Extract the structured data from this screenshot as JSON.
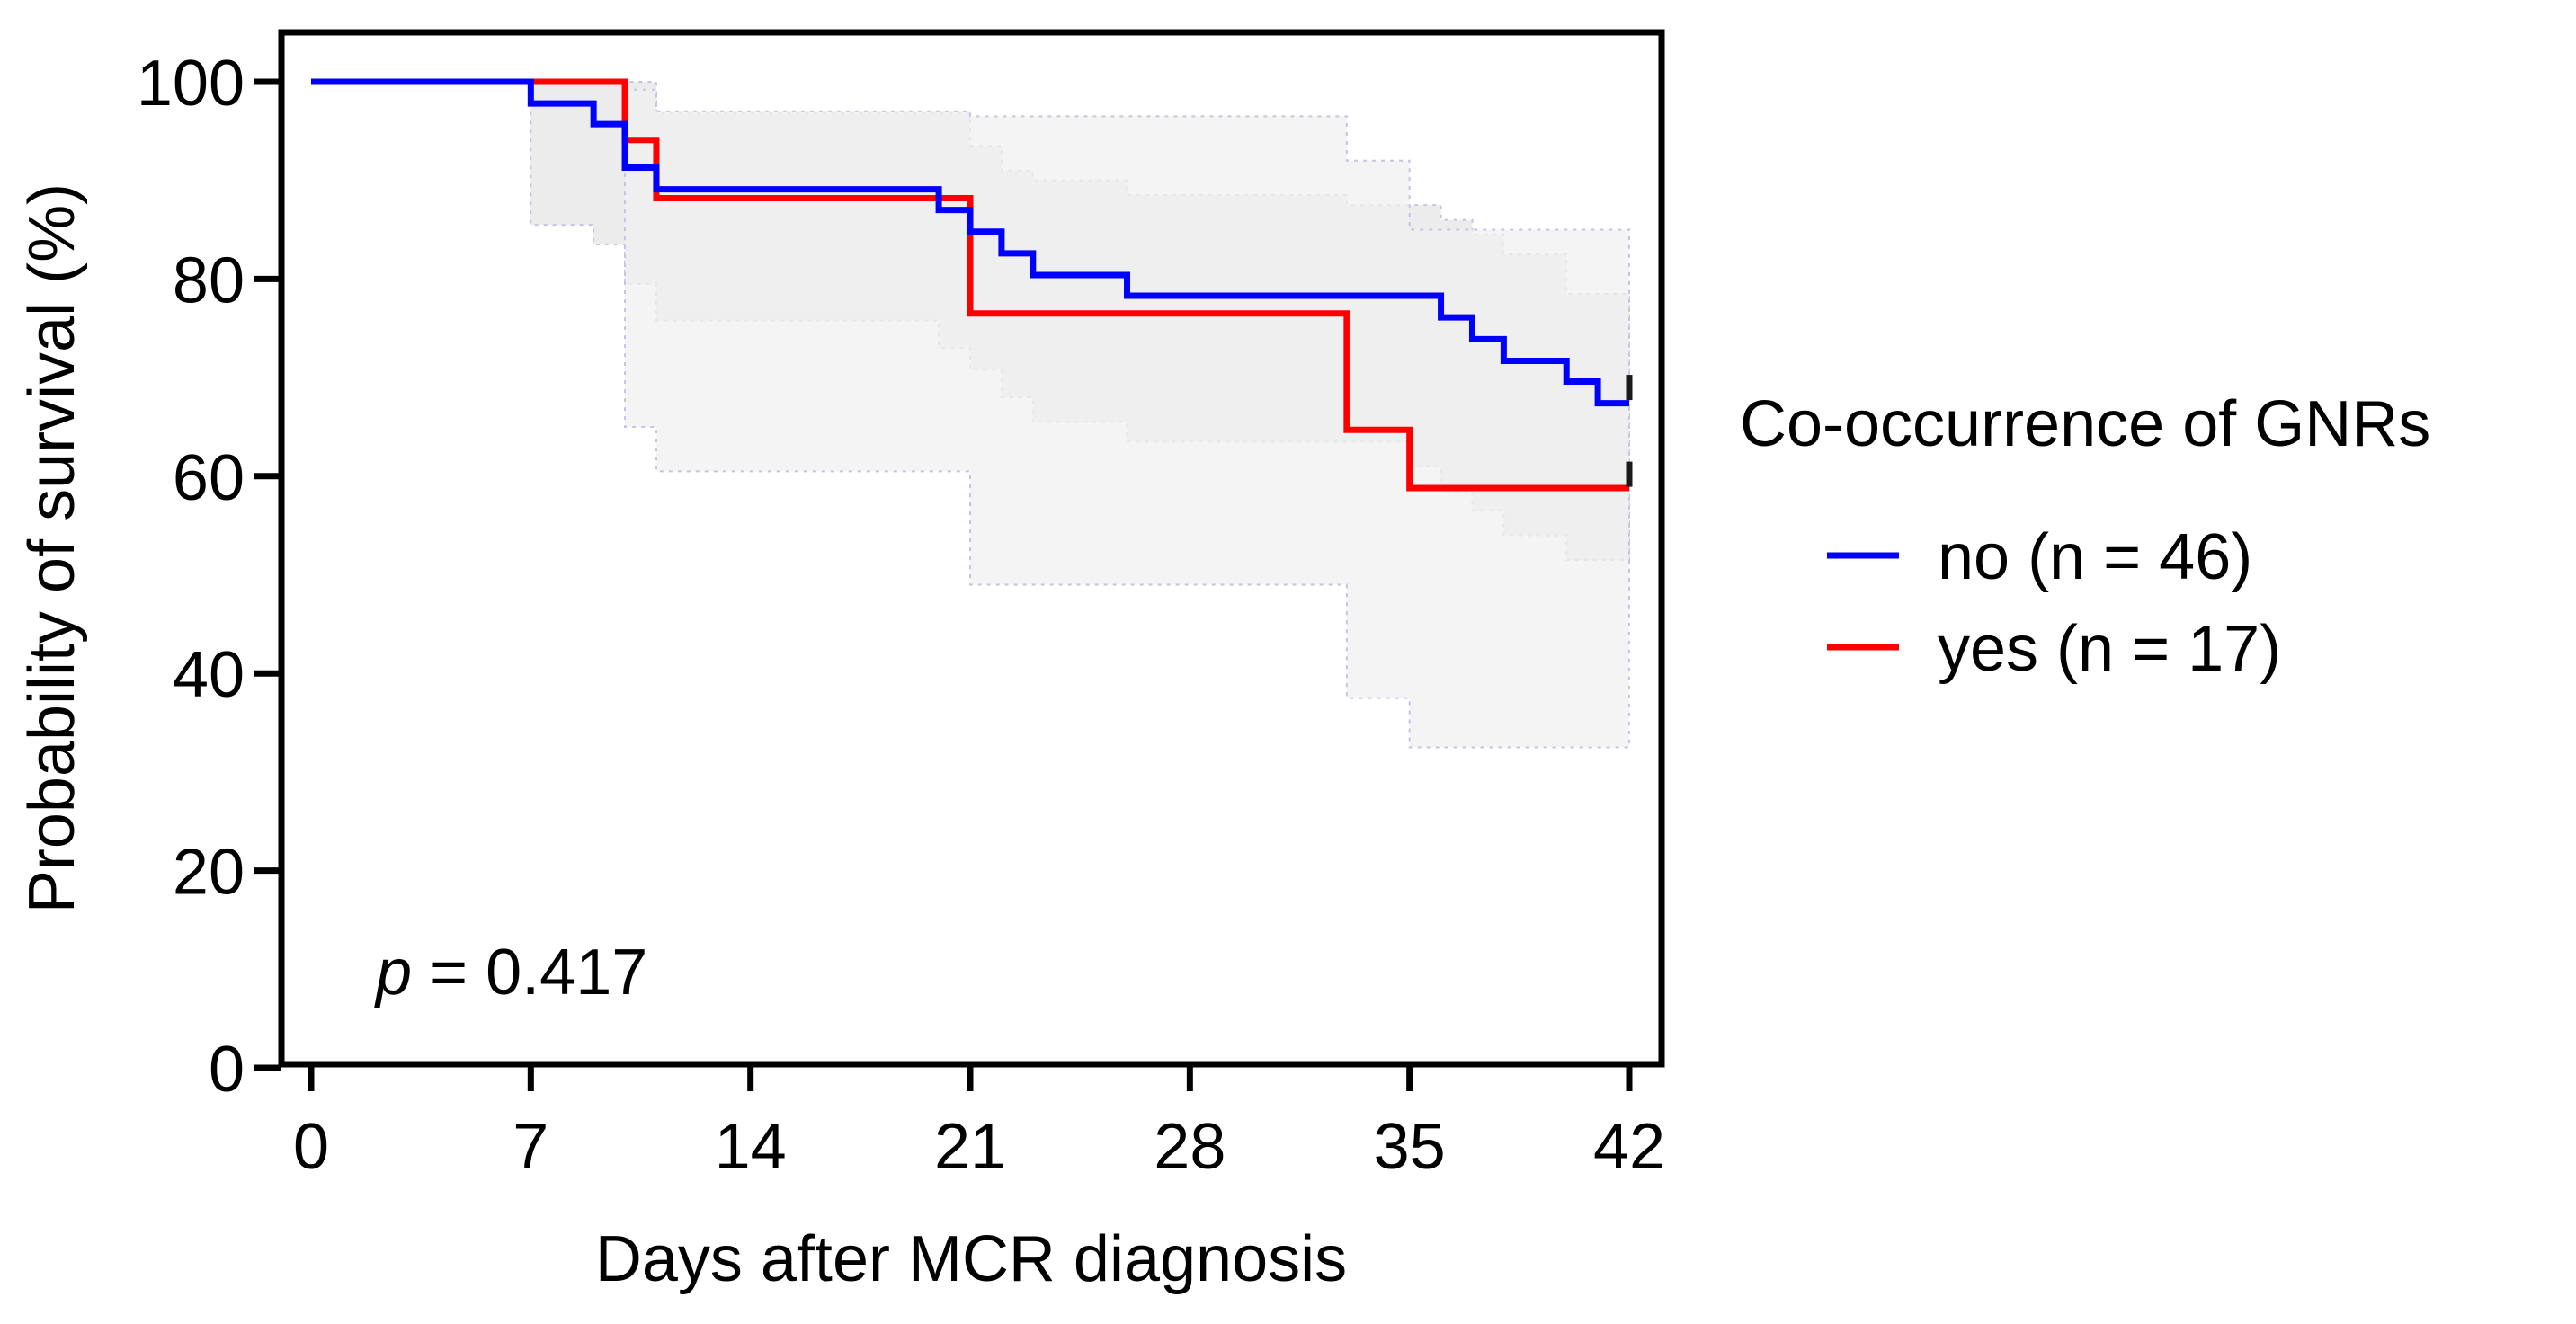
{
  "chart_data": {
    "type": "line",
    "subtype": "kaplan-meier",
    "xlabel": "Days after MCR diagnosis",
    "ylabel": "Probability of survival (%)",
    "xlim": [
      0,
      42
    ],
    "ylim": [
      0,
      100
    ],
    "xticks": [
      0,
      7,
      14,
      21,
      28,
      35,
      42
    ],
    "yticks": [
      0,
      20,
      40,
      60,
      80,
      100
    ],
    "grid": false,
    "legend_title": "Co-occurrence of GNRs",
    "legend_position": "right",
    "annotation": {
      "italic": "p",
      "text": " = 0.417"
    },
    "series": [
      {
        "name": "no (n = 46)",
        "label": "no",
        "n": "n = 46",
        "color": "#0000ff",
        "steps": [
          [
            0,
            100
          ],
          [
            7,
            97.8
          ],
          [
            9,
            95.7
          ],
          [
            10,
            91.3
          ],
          [
            11,
            89.1
          ],
          [
            20,
            87.0
          ],
          [
            21,
            84.8
          ],
          [
            22,
            82.6
          ],
          [
            23,
            80.4
          ],
          [
            26,
            78.3
          ],
          [
            36,
            76.1
          ],
          [
            37,
            73.9
          ],
          [
            38,
            71.7
          ],
          [
            40,
            69.6
          ],
          [
            41,
            67.4
          ],
          [
            42,
            67.4
          ]
        ],
        "censored": [
          [
            42,
            69.0
          ]
        ],
        "ci_lower": [
          [
            7,
            85.5
          ],
          [
            9,
            83.5
          ],
          [
            10,
            79.5
          ],
          [
            11,
            75.8
          ],
          [
            20,
            73.0
          ],
          [
            21,
            70.8
          ],
          [
            22,
            68.0
          ],
          [
            23,
            65.5
          ],
          [
            26,
            63.5
          ],
          [
            35,
            61.0
          ],
          [
            36,
            58.5
          ],
          [
            37,
            56.5
          ],
          [
            38,
            54.0
          ],
          [
            40,
            51.5
          ],
          [
            42,
            51.5
          ]
        ],
        "ci_upper": [
          [
            7,
            100
          ],
          [
            11,
            96.8
          ],
          [
            21,
            93.5
          ],
          [
            22,
            91.0
          ],
          [
            23,
            90.0
          ],
          [
            26,
            88.5
          ],
          [
            33,
            87.5
          ],
          [
            36,
            86.0
          ],
          [
            37,
            84.5
          ],
          [
            38,
            82.5
          ],
          [
            40,
            78.5
          ],
          [
            42,
            78.5
          ]
        ],
        "ci_color": "#e6e6e6"
      },
      {
        "name": "yes (n = 17)",
        "label": "yes",
        "n": "n = 17",
        "color": "#ff0000",
        "steps": [
          [
            0,
            100
          ],
          [
            10,
            94.1
          ],
          [
            11,
            88.2
          ],
          [
            21,
            76.5
          ],
          [
            33,
            64.7
          ],
          [
            35,
            58.8
          ],
          [
            42,
            58.8
          ]
        ],
        "censored": [
          [
            42,
            60.2
          ]
        ],
        "ci_lower": [
          [
            10,
            65.0
          ],
          [
            11,
            60.5
          ],
          [
            21,
            49.0
          ],
          [
            33,
            37.5
          ],
          [
            35,
            32.5
          ],
          [
            42,
            32.5
          ]
        ],
        "ci_upper": [
          [
            10,
            99.2
          ],
          [
            11,
            97.0
          ],
          [
            21,
            96.5
          ],
          [
            33,
            92.0
          ],
          [
            35,
            85.0
          ],
          [
            42,
            85.0
          ]
        ],
        "ci_color": "#f0f0f0"
      }
    ]
  }
}
